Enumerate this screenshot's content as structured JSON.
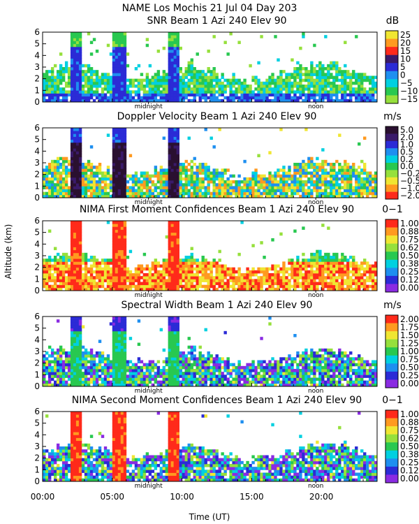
{
  "header": {
    "title": "NAME Los Mochis   21 Jul 04 Day 203"
  },
  "x_axis": {
    "ticks": [
      "00:00",
      "05:00",
      "10:00",
      "15:00",
      "20:00"
    ],
    "tick_values": [
      0,
      5,
      10,
      15,
      20
    ],
    "range": [
      0,
      24
    ],
    "label": "Time (UT)",
    "markers": [
      {
        "label": "midnight",
        "value": 7.6
      },
      {
        "label": "noon",
        "value": 19.6
      }
    ]
  },
  "y_axis": {
    "label": "Altitude (km)",
    "ticks": [
      "0",
      "1",
      "2",
      "3",
      "4",
      "5",
      "6"
    ],
    "range": [
      0,
      6
    ]
  },
  "chart_data": [
    {
      "type": "heatmap",
      "title": "SNR Beam 1 Azi 240 Elev 90",
      "unit": "dB",
      "colorbar_ticks": [
        "25",
        "20",
        "15",
        "10",
        "5",
        "0",
        "−5",
        "−10",
        "−15"
      ],
      "colorbar_range": [
        -15,
        25
      ]
    },
    {
      "type": "heatmap",
      "title": "Doppler Velocity Beam 1 Azi 240 Elev 90",
      "unit": "m/s",
      "colorbar_ticks": [
        "5.0",
        "2.0",
        "1.0",
        "0.5",
        "0.2",
        "0.0",
        "−0.2",
        "−0.5",
        "−1.0",
        "−2.0"
      ],
      "colorbar_range": [
        -2.0,
        5.0
      ]
    },
    {
      "type": "heatmap",
      "title": "NIMA First Moment Confidences Beam 1 Azi 240 Elev 90",
      "unit": "0−1",
      "colorbar_ticks": [
        "1.00",
        "0.88",
        "0.75",
        "0.62",
        "0.50",
        "0.38",
        "0.25",
        "0.12",
        "0.00"
      ],
      "colorbar_range": [
        0,
        1
      ]
    },
    {
      "type": "heatmap",
      "title": "Spectral Width Beam 1 Azi 240 Elev 90",
      "unit": "m/s",
      "colorbar_ticks": [
        "2.00",
        "1.75",
        "1.50",
        "1.25",
        "1.00",
        "0.75",
        "0.50",
        "0.25",
        "0.00"
      ],
      "colorbar_range": [
        0,
        2
      ]
    },
    {
      "type": "heatmap",
      "title": "NIMA Second Moment Confidences Beam 1 Azi 240 Elev 90",
      "unit": "0−1",
      "colorbar_ticks": [
        "1.00",
        "0.88",
        "0.75",
        "0.62",
        "0.50",
        "0.38",
        "0.25",
        "0.12",
        "0.00"
      ],
      "colorbar_range": [
        0,
        1
      ]
    }
  ],
  "colors": {
    "palette": [
      "#8a2be2",
      "#2b2bd6",
      "#1e8ff0",
      "#00d0e0",
      "#28c850",
      "#96e03c",
      "#f0e632",
      "#ff9a20",
      "#ff2a1a"
    ],
    "palette_snr": [
      "#96e03c",
      "#28c850",
      "#00d0e0",
      "#1e8ff0",
      "#2b2bd6",
      "#3a1a6a",
      "#ff2a1a",
      "#ff9a20",
      "#f0e632"
    ],
    "palette_vel": [
      "#ff2a1a",
      "#ff9a20",
      "#f0e632",
      "#96e03c",
      "#28c850",
      "#00d0e0",
      "#1e8ff0",
      "#2b2bd6",
      "#3a1a6a",
      "#2a1030"
    ]
  }
}
